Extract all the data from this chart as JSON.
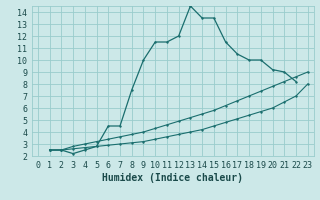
{
  "xlabel": "Humidex (Indice chaleur)",
  "bg_color": "#cce8e8",
  "grid_color": "#99cccc",
  "line_color": "#1a6e6e",
  "xlim": [
    -0.5,
    23.5
  ],
  "ylim": [
    2,
    14.5
  ],
  "xticks": [
    0,
    1,
    2,
    3,
    4,
    5,
    6,
    7,
    8,
    9,
    10,
    11,
    12,
    13,
    14,
    15,
    16,
    17,
    18,
    19,
    20,
    21,
    22,
    23
  ],
  "yticks": [
    2,
    3,
    4,
    5,
    6,
    7,
    8,
    9,
    10,
    11,
    12,
    13,
    14
  ],
  "line1_x": [
    1,
    2,
    3,
    4,
    5,
    6,
    7,
    8,
    9,
    10,
    11,
    12,
    13,
    14,
    15,
    16,
    17,
    18,
    19,
    20,
    21,
    22
  ],
  "line1_y": [
    2.5,
    2.5,
    2.2,
    2.5,
    2.8,
    4.5,
    4.5,
    7.5,
    10.0,
    11.5,
    11.5,
    12.0,
    14.5,
    13.5,
    13.5,
    11.5,
    10.5,
    10.0,
    10.0,
    9.2,
    9.0,
    8.2
  ],
  "line2_x": [
    1,
    2,
    3,
    4,
    5,
    6,
    7,
    8,
    9,
    10,
    11,
    12,
    13,
    14,
    15,
    16,
    17,
    18,
    19,
    20,
    21,
    22,
    23
  ],
  "line2_y": [
    2.5,
    2.5,
    2.8,
    3.0,
    3.2,
    3.4,
    3.6,
    3.8,
    4.0,
    4.3,
    4.6,
    4.9,
    5.2,
    5.5,
    5.8,
    6.2,
    6.6,
    7.0,
    7.4,
    7.8,
    8.2,
    8.6,
    9.0
  ],
  "line3_x": [
    1,
    2,
    3,
    4,
    5,
    6,
    7,
    8,
    9,
    10,
    11,
    12,
    13,
    14,
    15,
    16,
    17,
    18,
    19,
    20,
    21,
    22,
    23
  ],
  "line3_y": [
    2.5,
    2.5,
    2.6,
    2.7,
    2.8,
    2.9,
    3.0,
    3.1,
    3.2,
    3.4,
    3.6,
    3.8,
    4.0,
    4.2,
    4.5,
    4.8,
    5.1,
    5.4,
    5.7,
    6.0,
    6.5,
    7.0,
    8.0
  ],
  "fontsize_label": 7,
  "fontsize_tick": 6
}
